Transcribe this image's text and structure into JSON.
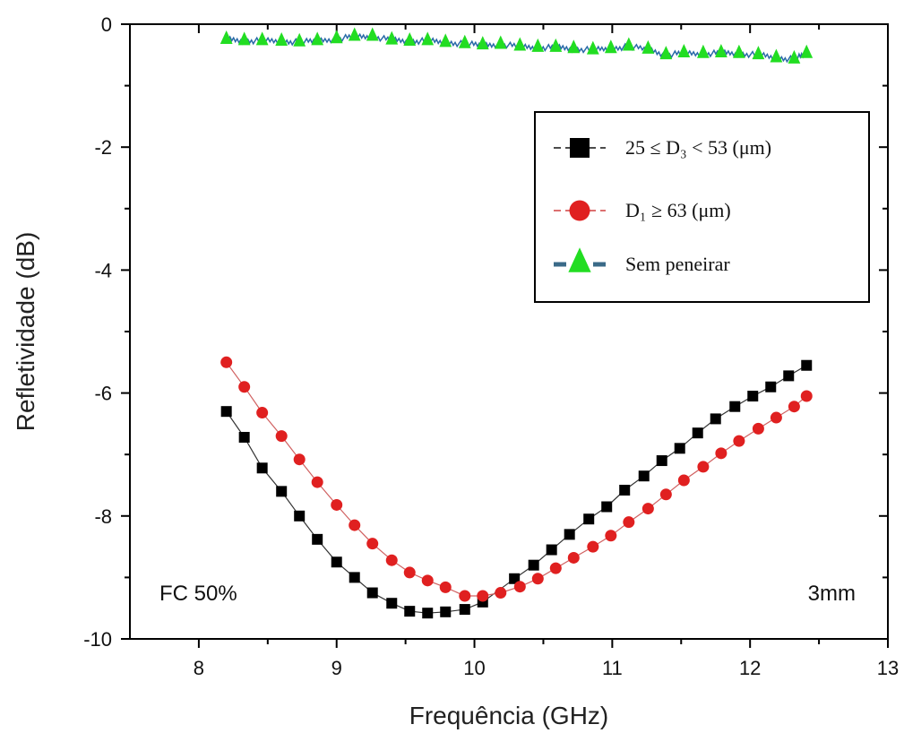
{
  "chart_data": {
    "type": "line",
    "xlabel": "Frequência (GHz)",
    "ylabel": "Refletividade (dB)",
    "xlim": [
      7.5,
      13
    ],
    "ylim": [
      -10,
      0
    ],
    "x_ticks": [
      "8",
      "9",
      "10",
      "11",
      "12",
      "13"
    ],
    "y_ticks": [
      "0",
      "-2",
      "-4",
      "-6",
      "-8",
      "-10"
    ],
    "grid": false,
    "legend_position": "top-right",
    "annotations": [
      {
        "text": "FC 50%",
        "position": "bottom-left"
      },
      {
        "text": "3mm",
        "position": "bottom-right"
      }
    ],
    "series": [
      {
        "name": "25 ≤ D₃ < 53 (μm)",
        "marker": "square",
        "color": "#000000",
        "x": [
          8.2,
          8.33,
          8.46,
          8.6,
          8.73,
          8.86,
          9.0,
          9.13,
          9.26,
          9.4,
          9.53,
          9.66,
          9.79,
          9.93,
          10.06,
          10.29,
          10.43,
          10.56,
          10.69,
          10.83,
          10.96,
          11.09,
          11.23,
          11.36,
          11.49,
          11.62,
          11.75,
          11.89,
          12.02,
          12.15,
          12.28,
          12.41
        ],
        "y": [
          -6.3,
          -6.72,
          -7.22,
          -7.6,
          -8.0,
          -8.38,
          -8.75,
          -9.0,
          -9.25,
          -9.42,
          -9.55,
          -9.58,
          -9.56,
          -9.52,
          -9.4,
          -9.02,
          -8.8,
          -8.55,
          -8.3,
          -8.05,
          -7.85,
          -7.58,
          -7.35,
          -7.1,
          -6.9,
          -6.65,
          -6.42,
          -6.22,
          -6.05,
          -5.9,
          -5.72,
          -5.55
        ]
      },
      {
        "name": "D₁ ≥ 63 (μm)",
        "marker": "circle",
        "color": "#e02020",
        "x": [
          8.2,
          8.33,
          8.46,
          8.6,
          8.73,
          8.86,
          9.0,
          9.13,
          9.26,
          9.4,
          9.53,
          9.66,
          9.79,
          9.93,
          10.06,
          10.19,
          10.33,
          10.46,
          10.59,
          10.72,
          10.86,
          10.99,
          11.12,
          11.26,
          11.39,
          11.52,
          11.66,
          11.79,
          11.92,
          12.06,
          12.19,
          12.32,
          12.41
        ],
        "y": [
          -5.5,
          -5.9,
          -6.32,
          -6.7,
          -7.08,
          -7.45,
          -7.82,
          -8.15,
          -8.45,
          -8.72,
          -8.92,
          -9.05,
          -9.16,
          -9.3,
          -9.3,
          -9.25,
          -9.15,
          -9.02,
          -8.85,
          -8.68,
          -8.5,
          -8.32,
          -8.1,
          -7.88,
          -7.65,
          -7.42,
          -7.2,
          -6.98,
          -6.78,
          -6.58,
          -6.4,
          -6.22,
          -6.05
        ]
      },
      {
        "name": "Sem peneirar",
        "marker": "triangle",
        "color": "#22dd22",
        "x": [
          8.2,
          8.33,
          8.46,
          8.6,
          8.73,
          8.86,
          9.0,
          9.13,
          9.26,
          9.4,
          9.53,
          9.66,
          9.79,
          9.93,
          10.06,
          10.19,
          10.33,
          10.46,
          10.59,
          10.72,
          10.86,
          10.99,
          11.12,
          11.26,
          11.39,
          11.52,
          11.66,
          11.79,
          11.92,
          12.06,
          12.19,
          12.32,
          12.41
        ],
        "y": [
          -0.25,
          -0.27,
          -0.27,
          -0.28,
          -0.29,
          -0.27,
          -0.24,
          -0.2,
          -0.2,
          -0.26,
          -0.28,
          -0.27,
          -0.3,
          -0.32,
          -0.34,
          -0.33,
          -0.36,
          -0.38,
          -0.38,
          -0.4,
          -0.42,
          -0.4,
          -0.36,
          -0.41,
          -0.5,
          -0.47,
          -0.48,
          -0.47,
          -0.48,
          -0.5,
          -0.55,
          -0.57,
          -0.48
        ]
      }
    ]
  }
}
